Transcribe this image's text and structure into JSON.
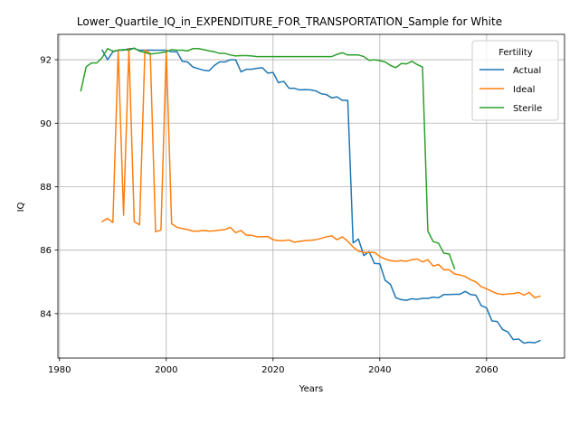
{
  "chart_data": {
    "type": "line",
    "title": "Lower_Quartile_IQ_in_EXPENDITURE_FOR_TRANSPORTATION_Sample for White",
    "xlabel": "Years",
    "ylabel": "IQ",
    "xlim": [
      1979.7,
      2074.6
    ],
    "ylim": [
      82.6,
      92.8
    ],
    "xticks": [
      1980,
      2000,
      2020,
      2040,
      2060
    ],
    "yticks": [
      84,
      86,
      88,
      90,
      92
    ],
    "grid": true,
    "legend": {
      "title": "Fertility",
      "placement": "top-right"
    },
    "series": [
      {
        "name": "Actual",
        "color": "#1f77b4",
        "points": [
          [
            1988,
            92.3
          ],
          [
            1989,
            92.0
          ],
          [
            1990,
            92.25
          ],
          [
            1991,
            92.3
          ],
          [
            1992,
            92.3
          ],
          [
            1993,
            92.35
          ],
          [
            1994,
            92.35
          ],
          [
            1995,
            92.3
          ],
          [
            1996,
            92.3
          ],
          [
            1997,
            92.3
          ],
          [
            1998,
            92.3
          ],
          [
            1999,
            92.3
          ],
          [
            2000,
            92.3
          ],
          [
            2001,
            92.25
          ],
          [
            2002,
            92.25
          ],
          [
            2003,
            91.95
          ],
          [
            2004,
            91.93
          ],
          [
            2005,
            91.77
          ],
          [
            2006,
            91.72
          ],
          [
            2007,
            91.67
          ],
          [
            2008,
            91.65
          ],
          [
            2009,
            91.82
          ],
          [
            2010,
            91.93
          ],
          [
            2011,
            91.93
          ],
          [
            2012,
            92.0
          ],
          [
            2013,
            92.0
          ],
          [
            2014,
            91.62
          ],
          [
            2015,
            91.7
          ],
          [
            2016,
            91.7
          ],
          [
            2017,
            91.73
          ],
          [
            2018,
            91.75
          ],
          [
            2019,
            91.58
          ],
          [
            2020,
            91.6
          ],
          [
            2021,
            91.28
          ],
          [
            2022,
            91.32
          ],
          [
            2023,
            91.1
          ],
          [
            2024,
            91.1
          ],
          [
            2025,
            91.05
          ],
          [
            2026,
            91.06
          ],
          [
            2027,
            91.05
          ],
          [
            2028,
            91.02
          ],
          [
            2029,
            90.93
          ],
          [
            2030,
            90.9
          ],
          [
            2031,
            90.8
          ],
          [
            2032,
            90.83
          ],
          [
            2033,
            90.72
          ],
          [
            2034,
            90.72
          ],
          [
            2035,
            86.23
          ],
          [
            2036,
            86.35
          ],
          [
            2037,
            85.83
          ],
          [
            2038,
            85.95
          ],
          [
            2039,
            85.58
          ],
          [
            2040,
            85.57
          ],
          [
            2041,
            85.05
          ],
          [
            2042,
            84.92
          ],
          [
            2043,
            84.5
          ],
          [
            2044,
            84.44
          ],
          [
            2045,
            84.42
          ],
          [
            2046,
            84.47
          ],
          [
            2047,
            84.45
          ],
          [
            2048,
            84.48
          ],
          [
            2049,
            84.48
          ],
          [
            2050,
            84.52
          ],
          [
            2051,
            84.5
          ],
          [
            2052,
            84.6
          ],
          [
            2053,
            84.6
          ],
          [
            2054,
            84.61
          ],
          [
            2055,
            84.61
          ],
          [
            2056,
            84.7
          ],
          [
            2057,
            84.6
          ],
          [
            2058,
            84.58
          ],
          [
            2059,
            84.25
          ],
          [
            2060,
            84.18
          ],
          [
            2061,
            83.77
          ],
          [
            2062,
            83.75
          ],
          [
            2063,
            83.5
          ],
          [
            2064,
            83.42
          ],
          [
            2065,
            83.18
          ],
          [
            2066,
            83.2
          ],
          [
            2067,
            83.07
          ],
          [
            2068,
            83.1
          ],
          [
            2069,
            83.08
          ],
          [
            2070,
            83.15
          ]
        ]
      },
      {
        "name": "Ideal",
        "color": "#ff7f0e",
        "points": [
          [
            1988,
            86.9
          ],
          [
            1989,
            87.0
          ],
          [
            1990,
            86.87
          ],
          [
            1991,
            92.3
          ],
          [
            1992,
            87.1
          ],
          [
            1993,
            92.35
          ],
          [
            1994,
            86.9
          ],
          [
            1995,
            86.8
          ],
          [
            1996,
            92.3
          ],
          [
            1997,
            92.2
          ],
          [
            1998,
            86.58
          ],
          [
            1999,
            86.63
          ],
          [
            2000,
            92.3
          ],
          [
            2001,
            86.83
          ],
          [
            2002,
            86.72
          ],
          [
            2003,
            86.68
          ],
          [
            2004,
            86.65
          ],
          [
            2005,
            86.6
          ],
          [
            2006,
            86.6
          ],
          [
            2007,
            86.62
          ],
          [
            2008,
            86.6
          ],
          [
            2009,
            86.61
          ],
          [
            2010,
            86.63
          ],
          [
            2011,
            86.65
          ],
          [
            2012,
            86.72
          ],
          [
            2013,
            86.55
          ],
          [
            2014,
            86.62
          ],
          [
            2015,
            86.47
          ],
          [
            2016,
            86.47
          ],
          [
            2017,
            86.42
          ],
          [
            2018,
            86.42
          ],
          [
            2019,
            86.43
          ],
          [
            2020,
            86.33
          ],
          [
            2021,
            86.3
          ],
          [
            2022,
            86.3
          ],
          [
            2023,
            86.32
          ],
          [
            2024,
            86.25
          ],
          [
            2025,
            86.28
          ],
          [
            2026,
            86.3
          ],
          [
            2027,
            86.31
          ],
          [
            2028,
            86.33
          ],
          [
            2029,
            86.37
          ],
          [
            2030,
            86.42
          ],
          [
            2031,
            86.45
          ],
          [
            2032,
            86.33
          ],
          [
            2033,
            86.42
          ],
          [
            2034,
            86.28
          ],
          [
            2035,
            86.1
          ],
          [
            2036,
            85.97
          ],
          [
            2037,
            85.93
          ],
          [
            2038,
            85.93
          ],
          [
            2039,
            85.93
          ],
          [
            2040,
            85.8
          ],
          [
            2041,
            85.72
          ],
          [
            2042,
            85.67
          ],
          [
            2043,
            85.65
          ],
          [
            2044,
            85.67
          ],
          [
            2045,
            85.65
          ],
          [
            2046,
            85.7
          ],
          [
            2047,
            85.72
          ],
          [
            2048,
            85.63
          ],
          [
            2049,
            85.7
          ],
          [
            2050,
            85.5
          ],
          [
            2051,
            85.55
          ],
          [
            2052,
            85.38
          ],
          [
            2053,
            85.38
          ],
          [
            2054,
            85.25
          ],
          [
            2055,
            85.22
          ],
          [
            2056,
            85.17
          ],
          [
            2057,
            85.07
          ],
          [
            2058,
            85.0
          ],
          [
            2059,
            84.85
          ],
          [
            2060,
            84.78
          ],
          [
            2061,
            84.7
          ],
          [
            2062,
            84.63
          ],
          [
            2063,
            84.6
          ],
          [
            2064,
            84.62
          ],
          [
            2065,
            84.63
          ],
          [
            2066,
            84.67
          ],
          [
            2067,
            84.58
          ],
          [
            2068,
            84.67
          ],
          [
            2069,
            84.5
          ],
          [
            2070,
            84.55
          ]
        ]
      },
      {
        "name": "Sterile",
        "color": "#2ca02c",
        "points": [
          [
            1984,
            91.02
          ],
          [
            1985,
            91.78
          ],
          [
            1986,
            91.9
          ],
          [
            1987,
            91.9
          ],
          [
            1988,
            92.07
          ],
          [
            1989,
            92.35
          ],
          [
            1990,
            92.27
          ],
          [
            1991,
            92.3
          ],
          [
            1992,
            92.32
          ],
          [
            1993,
            92.3
          ],
          [
            1994,
            92.37
          ],
          [
            1995,
            92.27
          ],
          [
            1996,
            92.23
          ],
          [
            1997,
            92.18
          ],
          [
            1998,
            92.2
          ],
          [
            1999,
            92.22
          ],
          [
            2000,
            92.25
          ],
          [
            2001,
            92.32
          ],
          [
            2002,
            92.3
          ],
          [
            2003,
            92.3
          ],
          [
            2004,
            92.28
          ],
          [
            2005,
            92.35
          ],
          [
            2006,
            92.35
          ],
          [
            2007,
            92.32
          ],
          [
            2008,
            92.28
          ],
          [
            2009,
            92.25
          ],
          [
            2010,
            92.2
          ],
          [
            2011,
            92.2
          ],
          [
            2012,
            92.15
          ],
          [
            2013,
            92.12
          ],
          [
            2014,
            92.13
          ],
          [
            2015,
            92.13
          ],
          [
            2016,
            92.12
          ],
          [
            2017,
            92.1
          ],
          [
            2018,
            92.1
          ],
          [
            2019,
            92.1
          ],
          [
            2020,
            92.1
          ],
          [
            2021,
            92.1
          ],
          [
            2022,
            92.1
          ],
          [
            2023,
            92.1
          ],
          [
            2024,
            92.1
          ],
          [
            2025,
            92.1
          ],
          [
            2026,
            92.1
          ],
          [
            2027,
            92.1
          ],
          [
            2028,
            92.1
          ],
          [
            2029,
            92.1
          ],
          [
            2030,
            92.1
          ],
          [
            2031,
            92.1
          ],
          [
            2032,
            92.17
          ],
          [
            2033,
            92.22
          ],
          [
            2034,
            92.15
          ],
          [
            2035,
            92.15
          ],
          [
            2036,
            92.15
          ],
          [
            2037,
            92.1
          ],
          [
            2038,
            91.98
          ],
          [
            2039,
            92.0
          ],
          [
            2040,
            91.97
          ],
          [
            2041,
            91.93
          ],
          [
            2042,
            91.82
          ],
          [
            2043,
            91.75
          ],
          [
            2044,
            91.88
          ],
          [
            2045,
            91.87
          ],
          [
            2046,
            91.95
          ],
          [
            2047,
            91.85
          ],
          [
            2048,
            91.77
          ],
          [
            2049,
            86.6
          ],
          [
            2050,
            86.27
          ],
          [
            2051,
            86.22
          ],
          [
            2052,
            85.9
          ],
          [
            2053,
            85.88
          ],
          [
            2054,
            85.42
          ]
        ]
      }
    ]
  }
}
